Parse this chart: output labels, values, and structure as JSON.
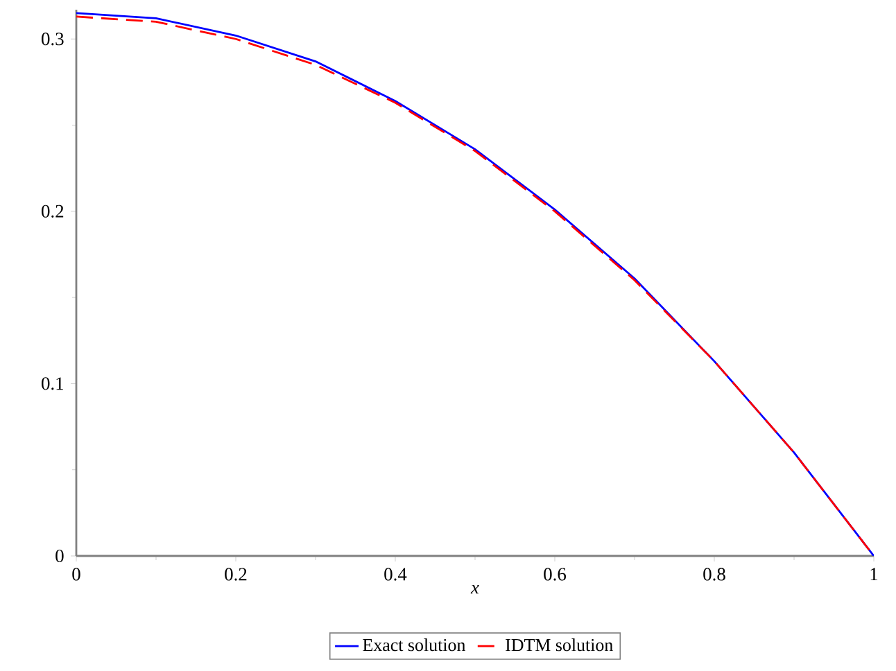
{
  "chart_data": {
    "type": "line",
    "xlabel": "x",
    "xlim": [
      0,
      1
    ],
    "ylim": [
      0,
      0.317
    ],
    "xticks": [
      0,
      0.2,
      0.4,
      0.6,
      0.8,
      1
    ],
    "yticks": [
      0,
      0.1,
      0.2,
      0.3
    ],
    "x": [
      0,
      0.1,
      0.2,
      0.3,
      0.4,
      0.5,
      0.6,
      0.7,
      0.8,
      0.9,
      1.0
    ],
    "series": [
      {
        "name": "Exact solution",
        "color": "#0000ff",
        "line_style": "solid",
        "values": [
          0.315,
          0.312,
          0.302,
          0.287,
          0.264,
          0.236,
          0.201,
          0.161,
          0.113,
          0.06,
          0
        ]
      },
      {
        "name": "IDTM solution",
        "color": "#ff0000",
        "line_style": "dashed",
        "values": [
          0.313,
          0.31,
          0.3,
          0.285,
          0.263,
          0.235,
          0.2,
          0.16,
          0.113,
          0.06,
          0
        ]
      }
    ],
    "grid": false,
    "legend": "bottom",
    "marker": "none"
  }
}
